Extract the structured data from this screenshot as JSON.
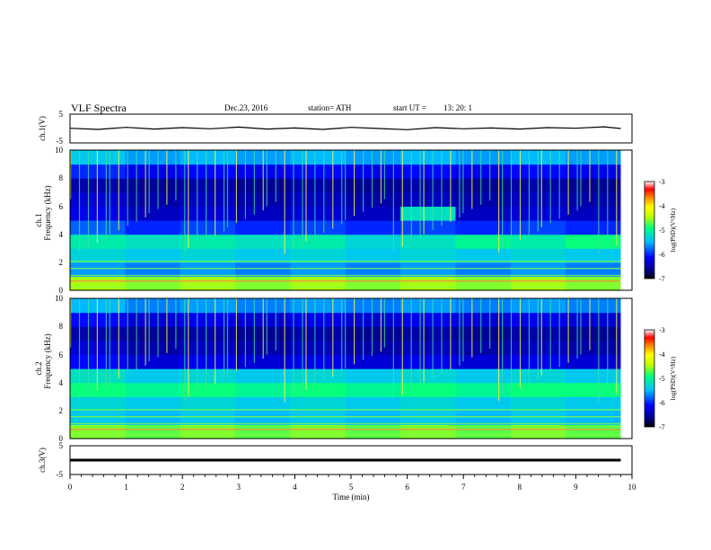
{
  "header": {
    "title": "VLF  Spectra",
    "date": "Dec.23, 2016",
    "station": "station= ATH",
    "start_label": "start  UT  =",
    "start_time": "13: 20: 1"
  },
  "axis": {
    "xlabel": "Time  (min)",
    "x_ticks": [
      "0",
      "1",
      "2",
      "3",
      "4",
      "5",
      "6",
      "7",
      "8",
      "9",
      "10"
    ],
    "freq_ticks": [
      "0",
      "2",
      "4",
      "6",
      "8",
      "10"
    ],
    "wave_ticks": [
      "5",
      "-5"
    ]
  },
  "panels": {
    "ch1_wave_label": "ch.1(V)",
    "ch1_spec_label": "ch.1",
    "ch2_spec_label": "ch.2",
    "freq_label": "Frequency  (kHz)",
    "ch3_wave_label": "ch.3(V)"
  },
  "colorbar": {
    "ticks": [
      "-3",
      "-4",
      "-5",
      "-6",
      "-7"
    ],
    "label": "log(PSD)(V²/Hz)",
    "colors": [
      "#000080",
      "#0000ff",
      "#00c0ff",
      "#00ff80",
      "#c0ff00",
      "#ffff00",
      "#ff8000",
      "#ff0000",
      "#ffffff"
    ]
  },
  "chart_data": [
    {
      "type": "line",
      "name": "ch.1 waveform",
      "ylabel": "ch.1(V)",
      "xlim": [
        0,
        10
      ],
      "ylim": [
        -5,
        5
      ],
      "x": [
        0,
        0.5,
        1,
        1.5,
        2,
        2.5,
        3,
        3.5,
        4,
        4.5,
        5,
        5.5,
        6,
        6.5,
        7,
        7.5,
        8,
        8.5,
        9,
        9.5,
        9.8
      ],
      "values": [
        0.1,
        -0.3,
        0.4,
        -0.2,
        0.3,
        -0.1,
        0.5,
        -0.2,
        0.2,
        -0.3,
        0.4,
        0.0,
        -0.4,
        0.3,
        -0.1,
        0.2,
        -0.2,
        0.3,
        0.1,
        0.6,
        0.0
      ]
    },
    {
      "type": "heatmap",
      "name": "ch.1 spectrogram",
      "xlabel": "Time  (min)",
      "ylabel": "Frequency  (kHz)",
      "xlim": [
        0,
        10
      ],
      "ylim": [
        0,
        10
      ],
      "zlim": [
        -7,
        -3
      ],
      "freq_kHz": [
        0.5,
        1.5,
        2.5,
        3.5,
        4.5,
        5.5,
        6.5,
        7.5,
        8.5,
        9.5
      ],
      "time_min": [
        0,
        1,
        2,
        3,
        4,
        5,
        6,
        7,
        8,
        9
      ],
      "log_psd": [
        [
          -4.5,
          -4.6,
          -4.5,
          -4.6,
          -4.5,
          -4.6,
          -4.5,
          -4.6,
          -4.5,
          -4.6
        ],
        [
          -5.6,
          -5.7,
          -5.6,
          -5.7,
          -5.6,
          -5.7,
          -5.6,
          -5.7,
          -5.6,
          -5.7
        ],
        [
          -5.3,
          -5.4,
          -5.3,
          -5.4,
          -5.3,
          -5.4,
          -5.3,
          -5.4,
          -5.3,
          -5.4
        ],
        [
          -5.1,
          -5.2,
          -5.1,
          -5.2,
          -5.1,
          -5.3,
          -5.2,
          -5.0,
          -5.1,
          -4.9
        ],
        [
          -5.8,
          -6.0,
          -5.9,
          -6.0,
          -5.9,
          -6.0,
          -5.9,
          -6.0,
          -5.9,
          -6.0
        ],
        [
          -6.2,
          -6.4,
          -6.3,
          -6.4,
          -6.3,
          -6.4,
          -5.2,
          -6.4,
          -6.3,
          -6.4
        ],
        [
          -6.3,
          -6.5,
          -6.4,
          -6.5,
          -6.4,
          -6.5,
          -6.4,
          -6.5,
          -6.4,
          -6.5
        ],
        [
          -6.5,
          -6.6,
          -6.5,
          -6.6,
          -6.5,
          -6.6,
          -6.5,
          -6.6,
          -6.5,
          -6.6
        ],
        [
          -6.0,
          -6.2,
          -6.1,
          -6.2,
          -6.1,
          -6.2,
          -6.1,
          -6.2,
          -6.1,
          -6.2
        ],
        [
          -5.4,
          -5.6,
          -5.5,
          -5.6,
          -5.5,
          -5.6,
          -5.5,
          -5.6,
          -5.5,
          -5.6
        ]
      ]
    },
    {
      "type": "heatmap",
      "name": "ch.2 spectrogram",
      "xlabel": "Time  (min)",
      "ylabel": "Frequency  (kHz)",
      "xlim": [
        0,
        10
      ],
      "ylim": [
        0,
        10
      ],
      "zlim": [
        -7,
        -3
      ],
      "freq_kHz": [
        0.5,
        1.5,
        2.5,
        3.5,
        4.5,
        5.5,
        6.5,
        7.5,
        8.5,
        9.5
      ],
      "time_min": [
        0,
        1,
        2,
        3,
        4,
        5,
        6,
        7,
        8,
        9
      ],
      "log_psd": [
        [
          -4.6,
          -4.7,
          -4.6,
          -4.7,
          -4.6,
          -4.7,
          -4.6,
          -4.7,
          -4.6,
          -4.7
        ],
        [
          -5.4,
          -5.5,
          -5.4,
          -5.5,
          -5.4,
          -5.5,
          -5.4,
          -5.5,
          -5.4,
          -5.5
        ],
        [
          -5.3,
          -5.4,
          -5.3,
          -5.4,
          -5.3,
          -5.4,
          -5.3,
          -5.4,
          -5.3,
          -5.4
        ],
        [
          -4.9,
          -5.0,
          -4.9,
          -5.0,
          -4.9,
          -5.0,
          -4.9,
          -5.0,
          -4.9,
          -4.9
        ],
        [
          -5.2,
          -5.4,
          -5.3,
          -5.4,
          -5.3,
          -5.4,
          -5.3,
          -5.4,
          -5.3,
          -5.4
        ],
        [
          -6.1,
          -6.3,
          -6.2,
          -6.3,
          -6.2,
          -6.3,
          -6.2,
          -6.3,
          -6.2,
          -6.3
        ],
        [
          -6.3,
          -6.5,
          -6.4,
          -6.5,
          -6.4,
          -6.5,
          -6.4,
          -6.5,
          -6.4,
          -6.5
        ],
        [
          -6.5,
          -6.6,
          -6.5,
          -6.6,
          -6.5,
          -6.6,
          -6.5,
          -6.6,
          -6.5,
          -6.6
        ],
        [
          -6.1,
          -6.3,
          -6.2,
          -6.3,
          -6.2,
          -6.3,
          -6.2,
          -6.3,
          -6.2,
          -6.3
        ],
        [
          -5.5,
          -5.7,
          -5.6,
          -5.7,
          -5.6,
          -5.7,
          -5.6,
          -5.7,
          -5.6,
          -5.7
        ]
      ]
    },
    {
      "type": "line",
      "name": "ch.3 waveform",
      "ylabel": "ch.3(V)",
      "xlim": [
        0,
        10
      ],
      "ylim": [
        -5,
        5
      ],
      "x": [
        0,
        1,
        2,
        3,
        4,
        5,
        6,
        7,
        8,
        9,
        9.8
      ],
      "values": [
        0,
        0,
        0,
        0,
        0,
        0,
        0,
        0,
        0,
        0,
        0
      ]
    }
  ]
}
